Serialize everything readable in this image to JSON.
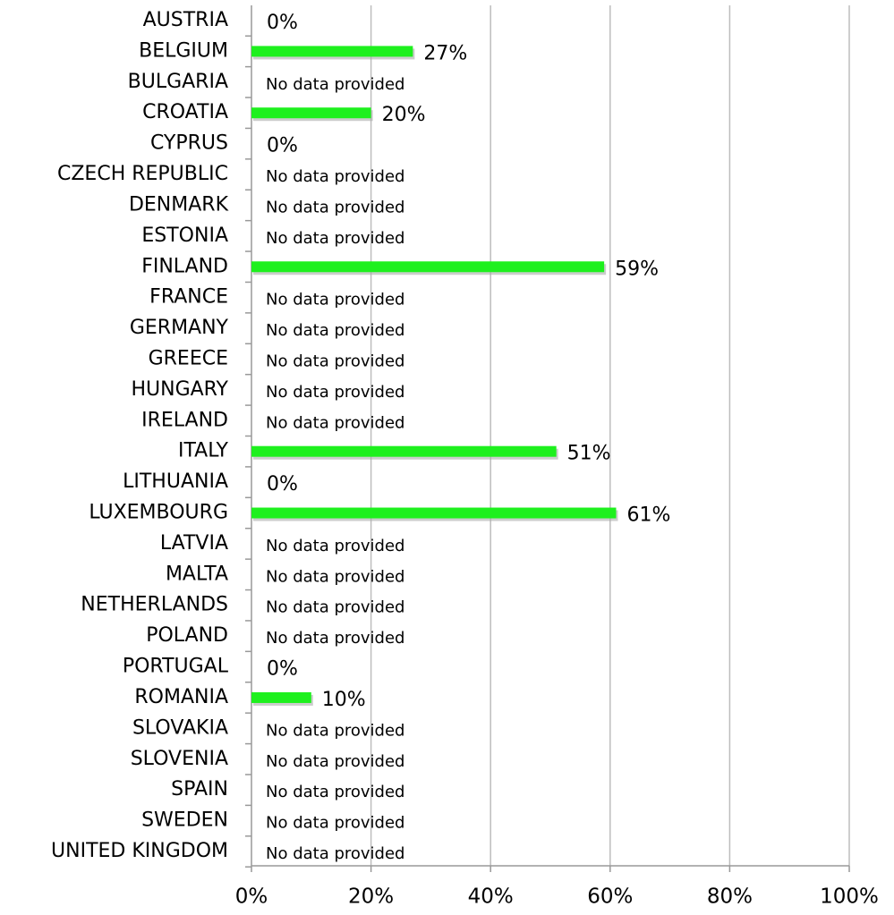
{
  "chart_data": {
    "type": "bar",
    "orientation": "horizontal",
    "color": "#1ef01e",
    "categories": [
      "AUSTRIA",
      "BELGIUM",
      "BULGARIA",
      "CROATIA",
      "CYPRUS",
      "CZECH REPUBLIC",
      "DENMARK",
      "ESTONIA",
      "FINLAND",
      "FRANCE",
      "GERMANY",
      "GREECE",
      "HUNGARY",
      "IRELAND",
      "ITALY",
      "LITHUANIA",
      "LUXEMBOURG",
      "LATVIA",
      "MALTA",
      "NETHERLANDS",
      "POLAND",
      "PORTUGAL",
      "ROMANIA",
      "SLOVAKIA",
      "SLOVENIA",
      "SPAIN",
      "SWEDEN",
      "UNITED KINGDOM"
    ],
    "values": [
      0,
      27,
      null,
      20,
      0,
      null,
      null,
      null,
      59,
      null,
      null,
      null,
      null,
      null,
      51,
      0,
      61,
      null,
      null,
      null,
      null,
      0,
      10,
      null,
      null,
      null,
      null,
      null
    ],
    "value_labels": [
      "0%",
      "27%",
      "No data provided",
      "20%",
      "0%",
      "No data provided",
      "No data provided",
      "No data provided",
      "59%",
      "No data provided",
      "No data provided",
      "No data provided",
      "No data provided",
      "No data provided",
      "51%",
      "0%",
      "61%",
      "No data provided",
      "No data provided",
      "No data provided",
      "No data provided",
      "0%",
      "10%",
      "No data provided",
      "No data provided",
      "No data provided",
      "No data provided",
      "No data provided"
    ],
    "xlim": [
      0,
      100
    ],
    "xticks": [
      {
        "value": 0,
        "label": "0%"
      },
      {
        "value": 20,
        "label": "20%"
      },
      {
        "value": 40,
        "label": "40%"
      },
      {
        "value": 60,
        "label": "60%"
      },
      {
        "value": 80,
        "label": "80%"
      },
      {
        "value": 100,
        "label": "100%"
      }
    ],
    "grid": true
  }
}
